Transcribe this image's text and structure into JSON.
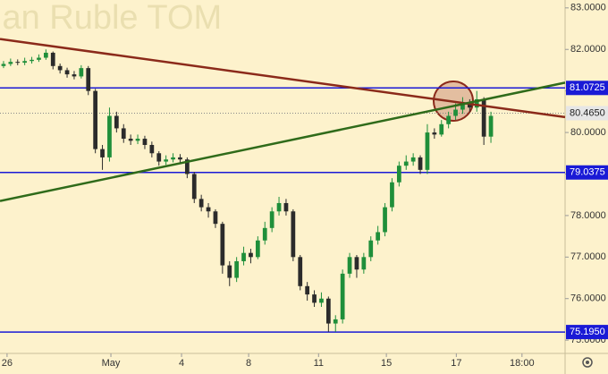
{
  "chart_data": {
    "type": "candlestick",
    "title": "ian Ruble TOM",
    "up_color": "#1f8f3a",
    "down_color": "#2b2b2b",
    "open": [
      81.6,
      81.65,
      81.7,
      81.68,
      81.72,
      81.75,
      81.8,
      81.92,
      81.6,
      81.5,
      81.4,
      81.35,
      81.55,
      81.0,
      79.6,
      79.4,
      80.4,
      80.1,
      79.85,
      79.8,
      79.85,
      79.7,
      79.5,
      79.3,
      79.35,
      79.4,
      79.35,
      79.0,
      78.4,
      78.2,
      78.1,
      77.8,
      76.8,
      76.5,
      76.9,
      77.1,
      77.0,
      77.4,
      77.7,
      78.1,
      78.3,
      78.1,
      77.0,
      76.3,
      76.1,
      75.9,
      76.0,
      75.4,
      75.5,
      76.6,
      77.0,
      76.7,
      77.0,
      77.4,
      77.6,
      78.2,
      78.8,
      79.2,
      79.3,
      79.4,
      79.1,
      80.0,
      79.95,
      80.2,
      80.4,
      80.55,
      80.7,
      80.6,
      80.8,
      79.9
    ],
    "high": [
      81.72,
      81.78,
      81.76,
      81.8,
      81.82,
      81.88,
      82.0,
      81.95,
      81.66,
      81.56,
      81.48,
      81.62,
      81.6,
      81.05,
      79.7,
      80.6,
      80.5,
      80.2,
      79.95,
      79.95,
      79.92,
      79.78,
      79.55,
      79.45,
      79.5,
      79.48,
      79.4,
      79.05,
      78.5,
      78.3,
      78.15,
      77.85,
      76.9,
      77.0,
      77.25,
      77.2,
      77.5,
      77.85,
      78.2,
      78.45,
      78.4,
      78.15,
      77.05,
      76.4,
      76.2,
      76.15,
      76.05,
      75.6,
      76.7,
      77.1,
      77.05,
      77.1,
      77.5,
      77.75,
      78.3,
      78.9,
      79.3,
      79.45,
      79.5,
      79.45,
      80.2,
      80.1,
      80.3,
      80.5,
      80.7,
      80.85,
      80.8,
      81.0,
      80.85,
      80.5
    ],
    "low": [
      81.55,
      81.6,
      81.62,
      81.62,
      81.66,
      81.7,
      81.75,
      81.52,
      81.42,
      81.32,
      81.28,
      81.3,
      80.9,
      79.5,
      79.1,
      79.3,
      80.0,
      79.75,
      79.7,
      79.72,
      79.6,
      79.4,
      79.2,
      79.22,
      79.28,
      79.25,
      78.9,
      78.3,
      78.1,
      77.95,
      77.7,
      76.6,
      76.3,
      76.4,
      76.8,
      76.85,
      76.95,
      77.3,
      77.6,
      78.0,
      78.0,
      76.9,
      76.2,
      75.95,
      75.8,
      75.8,
      75.2,
      75.2,
      75.4,
      76.5,
      76.5,
      76.6,
      76.9,
      77.3,
      77.5,
      78.1,
      78.7,
      79.1,
      79.2,
      79.0,
      79.0,
      79.85,
      79.9,
      80.1,
      80.3,
      80.45,
      80.5,
      80.5,
      79.7,
      79.75
    ],
    "close": [
      81.65,
      81.7,
      81.68,
      81.72,
      81.75,
      81.8,
      81.92,
      81.6,
      81.5,
      81.4,
      81.35,
      81.55,
      81.0,
      79.6,
      79.4,
      80.4,
      80.1,
      79.85,
      79.8,
      79.85,
      79.7,
      79.5,
      79.3,
      79.35,
      79.4,
      79.35,
      79.0,
      78.4,
      78.2,
      78.1,
      77.8,
      76.8,
      76.5,
      76.9,
      77.1,
      77.0,
      77.4,
      77.7,
      78.1,
      78.3,
      78.1,
      77.0,
      76.3,
      76.1,
      75.9,
      76.0,
      75.4,
      75.5,
      76.6,
      77.0,
      76.7,
      77.0,
      77.4,
      77.6,
      78.2,
      78.8,
      79.2,
      79.3,
      79.4,
      79.1,
      80.0,
      79.95,
      80.2,
      80.4,
      80.55,
      80.7,
      80.6,
      80.8,
      79.9,
      80.4
    ],
    "xlim": [
      0,
      80
    ],
    "xticks": [
      {
        "value": 1,
        "label": "26"
      },
      {
        "value": 15.7,
        "label": "May"
      },
      {
        "value": 25.7,
        "label": "4"
      },
      {
        "value": 35.2,
        "label": "8"
      },
      {
        "value": 45.1,
        "label": "11"
      },
      {
        "value": 54.7,
        "label": "15"
      },
      {
        "value": 64.6,
        "label": "17"
      },
      {
        "value": 73.9,
        "label": "18:00"
      }
    ],
    "ylim": [
      74.68,
      83.19
    ],
    "yticks": [
      {
        "value": 75,
        "label": "75.0000"
      },
      {
        "value": 76,
        "label": "76.0000"
      },
      {
        "value": 77,
        "label": "77.0000"
      },
      {
        "value": 78,
        "label": "78.0000"
      },
      {
        "value": 79,
        "label": "79.0000"
      },
      {
        "value": 80,
        "label": "80.0000"
      },
      {
        "value": 81,
        "label": "81.0000"
      },
      {
        "value": 82,
        "label": "82.0000"
      },
      {
        "value": 83,
        "label": "83.0000"
      }
    ],
    "levels": [
      {
        "value": 81.0725,
        "label": "81.0725"
      },
      {
        "value": 79.0375,
        "label": "79.0375"
      },
      {
        "value": 75.195,
        "label": "75.1950"
      }
    ],
    "level_color": "#1a1ad6",
    "last_price": {
      "value": 80.465,
      "label": "80.4650"
    },
    "trend_lines": [
      {
        "color": "#8b2a1a",
        "values": [
          82.25,
          80.37
        ]
      },
      {
        "color": "#2f6b1a",
        "values": [
          78.35,
          81.2
        ]
      }
    ]
  }
}
